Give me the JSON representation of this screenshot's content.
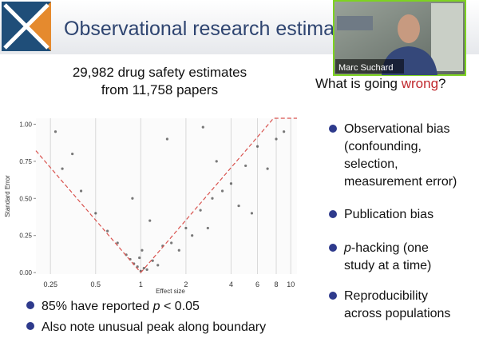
{
  "header": {
    "title": "Observational research estimates"
  },
  "video": {
    "name": "Marc Suchard"
  },
  "left_heading": [
    "29,982 drug safety estimates",
    "from 11,758 papers"
  ],
  "chart_data": {
    "type": "scatter",
    "xlabel": "Effect size",
    "ylabel": "Standard Error",
    "xscale": "log",
    "xlim": [
      0.2,
      11
    ],
    "ylim": [
      -0.01,
      1.04
    ],
    "xticks": [
      0.25,
      0.5,
      1,
      2,
      4,
      6,
      8,
      10
    ],
    "yticks": [
      {
        "value": 0,
        "label": "0.00"
      },
      {
        "value": 0.25,
        "label": "0.25"
      },
      {
        "value": 0.5,
        "label": "0.50"
      },
      {
        "value": 0.75,
        "label": "0.75"
      },
      {
        "value": 1,
        "label": "1.00"
      }
    ],
    "grid": true,
    "series": [
      {
        "color": "#222222",
        "x": [
          1,
          1.05,
          0.95,
          1.2,
          0.85,
          1.4,
          0.7,
          1.6,
          0.6,
          2,
          0.5,
          2.5,
          3,
          3.5,
          4,
          5,
          6,
          0.4,
          0.3,
          1.1,
          0.9,
          1.3,
          0.8,
          1.8,
          2.2,
          2.8,
          4.5,
          7,
          8,
          9,
          0.35,
          0.27,
          1.5,
          3.2,
          1.02,
          0.98,
          1.15,
          0.88,
          2.6,
          5.5
        ],
        "values": [
          0.01,
          0.03,
          0.04,
          0.08,
          0.09,
          0.18,
          0.2,
          0.2,
          0.28,
          0.3,
          0.4,
          0.42,
          0.5,
          0.55,
          0.6,
          0.72,
          0.85,
          0.55,
          0.7,
          0.02,
          0.06,
          0.05,
          0.12,
          0.15,
          0.25,
          0.3,
          0.45,
          0.7,
          0.9,
          0.95,
          0.8,
          0.95,
          0.9,
          0.75,
          0.15,
          0.1,
          0.35,
          0.5,
          0.98,
          0.4
        ]
      }
    ],
    "boundary_color": "#d9534f"
  },
  "left_bullets": [
    {
      "pre": "85% have reported ",
      "em": "p",
      "post": " < 0.05"
    },
    {
      "pre": "Also note unusual peak along boundary"
    }
  ],
  "right_heading": {
    "pre": "What is going ",
    "highlight": "wrong",
    "post": "?"
  },
  "right_bullets": [
    {
      "lines": [
        "Observational bias",
        "(confounding,",
        "selection,",
        "measurement error)"
      ]
    },
    {
      "lines": [
        "Publication bias"
      ]
    },
    {
      "em": "p",
      "lines": [
        "-hacking (one",
        "study at a time)"
      ]
    },
    {
      "lines": [
        "Reproducibility",
        "across populations"
      ]
    }
  ]
}
